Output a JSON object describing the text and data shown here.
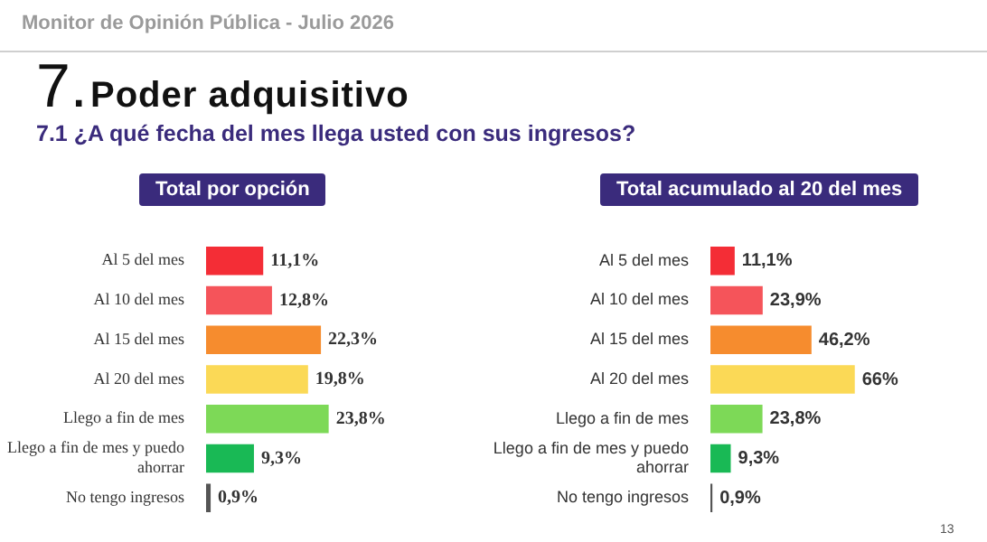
{
  "chart_data": [
    {
      "type": "bar",
      "orientation": "horizontal",
      "title": "Total por opción",
      "categories": [
        "Al 5 del mes",
        "Al 10 del mes",
        "Al 15 del mes",
        "Al 20 del mes",
        "Llego a fin de mes",
        "Llego a fin de mes y puedo ahorrar",
        "No tengo ingresos"
      ],
      "values": [
        11.1,
        12.8,
        22.3,
        19.8,
        23.8,
        9.3,
        0.9
      ],
      "value_labels": [
        "11,1%",
        "12,8%",
        "22,3%",
        "19,8%",
        "23,8%",
        "9,3%",
        "0,9%"
      ],
      "colors": [
        "#f42d36",
        "#f5545a",
        "#f68c2e",
        "#fbd956",
        "#7dd957",
        "#19b955",
        "#555555"
      ],
      "tick_labels": "y",
      "annotations": [
        "Monitor de Opinión Pública - Julio 2026",
        "7.",
        "Poder adquisitivo",
        "7.1 ¿A qué fecha del mes llega usted con sus ingresos?"
      ]
    },
    {
      "type": "bar",
      "orientation": "horizontal",
      "title": "Total acumulado al 20 del mes",
      "categories": [
        "Al 5 del mes",
        "Al 10 del mes",
        "Al 15 del mes",
        "Al 20 del mes",
        "Llego a fin de mes",
        "Llego a fin de mes y puedo ahorrar",
        "No tengo ingresos"
      ],
      "values": [
        11.1,
        23.9,
        46.2,
        66,
        23.8,
        9.3,
        0.9
      ],
      "value_labels": [
        "11,1%",
        "23,9%",
        "46,2%",
        "66%",
        "23,8%",
        "9,3%",
        "0,9%"
      ],
      "colors": [
        "#f42d36",
        "#f5545a",
        "#f68c2e",
        "#fbd956",
        "#7dd957",
        "#19b955",
        "#555555"
      ],
      "tick_labels": "y",
      "annotations": [
        "13"
      ]
    }
  ]
}
